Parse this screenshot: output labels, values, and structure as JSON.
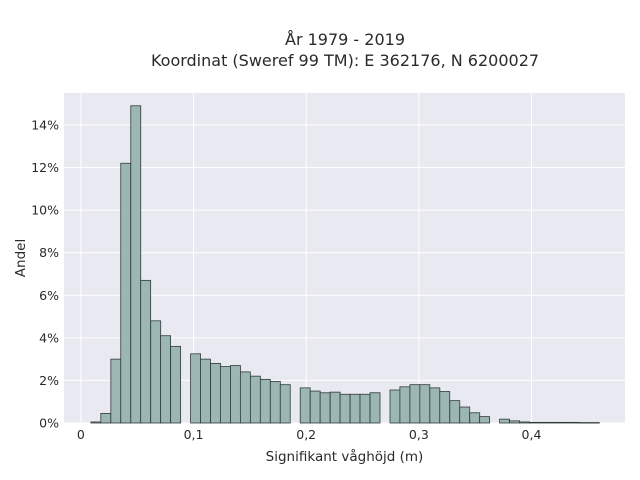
{
  "chart_data": {
    "type": "bar",
    "title": "År 1979 - 2019",
    "subtitle": "Koordinat (Sweref 99 TM): E 362176, N 6200027",
    "xlabel": "Signifikant våghöjd (m)",
    "ylabel": "Andel",
    "xlim": [
      -0.015,
      0.483
    ],
    "ylim": [
      0,
      15.5
    ],
    "x_ticks": [
      {
        "value": 0,
        "label": "0"
      },
      {
        "value": 0.1,
        "label": "0,1"
      },
      {
        "value": 0.2,
        "label": "0,2"
      },
      {
        "value": 0.3,
        "label": "0,3"
      },
      {
        "value": 0.4,
        "label": "0,4"
      }
    ],
    "y_ticks": [
      {
        "value": 0,
        "label": "0%"
      },
      {
        "value": 2,
        "label": "2%"
      },
      {
        "value": 4,
        "label": "4%"
      },
      {
        "value": 6,
        "label": "6%"
      },
      {
        "value": 8,
        "label": "8%"
      },
      {
        "value": 10,
        "label": "10%"
      },
      {
        "value": 12,
        "label": "12%"
      },
      {
        "value": 14,
        "label": "14%"
      }
    ],
    "grid": true,
    "bar_width": 0.00885,
    "bar_color": "#9bb6b3",
    "bar_edge_color": "#2f3b3a",
    "plot_background": "#e9e9f1",
    "x": [
      0.0133,
      0.0221,
      0.031,
      0.0398,
      0.0487,
      0.0575,
      0.0664,
      0.0752,
      0.0841,
      0.0929,
      0.1018,
      0.1106,
      0.1195,
      0.1283,
      0.1372,
      0.146,
      0.1549,
      0.1637,
      0.1726,
      0.1814,
      0.1903,
      0.1991,
      0.208,
      0.2168,
      0.2257,
      0.2345,
      0.2434,
      0.2522,
      0.2611,
      0.2699,
      0.2788,
      0.2876,
      0.2965,
      0.3053,
      0.3142,
      0.323,
      0.3319,
      0.3407,
      0.3496,
      0.3584,
      0.3673,
      0.3761,
      0.385,
      0.3938,
      0.4027,
      0.4115,
      0.4204,
      0.4292,
      0.4381,
      0.4469,
      0.4558
    ],
    "values": [
      0.05,
      0.45,
      3.0,
      12.2,
      14.9,
      6.7,
      4.8,
      4.1,
      3.6,
      0.0,
      3.25,
      3.0,
      2.8,
      2.65,
      2.7,
      2.4,
      2.2,
      2.05,
      1.95,
      1.8,
      0.0,
      1.65,
      1.5,
      1.42,
      1.45,
      1.35,
      1.35,
      1.35,
      1.42,
      0.0,
      1.55,
      1.7,
      1.8,
      1.8,
      1.65,
      1.48,
      1.05,
      0.75,
      0.48,
      0.3,
      0.0,
      0.18,
      0.1,
      0.05,
      0.03,
      0.03,
      0.03,
      0.03,
      0.03,
      0.02,
      0.02
    ]
  }
}
